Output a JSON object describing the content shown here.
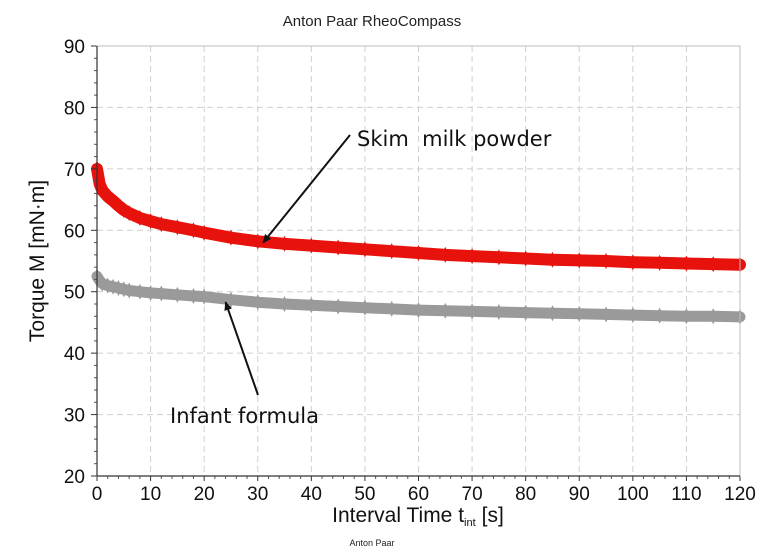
{
  "chart_data": {
    "type": "scatter",
    "title": "Anton Paar RheoCompass",
    "footer": "Anton Paar",
    "xlabel": "Interval Time t",
    "xlabel_sub": "int",
    "xlabel_unit": "[s]",
    "ylabel": "Torque M [mN·m]",
    "xlim": [
      0,
      120
    ],
    "ylim": [
      20,
      90
    ],
    "xticks": [
      "0",
      "10",
      "20",
      "30",
      "40",
      "50",
      "60",
      "70",
      "80",
      "90",
      "100",
      "110",
      "120"
    ],
    "yticks": [
      "20",
      "30",
      "40",
      "50",
      "60",
      "70",
      "80",
      "90"
    ],
    "grid": true,
    "series": [
      {
        "name": "Skim milk powder",
        "color": "#e8120c",
        "x": [
          0,
          0.5,
          1,
          2,
          3,
          4,
          5,
          6,
          8,
          10,
          12,
          15,
          18,
          20,
          25,
          30,
          35,
          40,
          45,
          50,
          55,
          60,
          65,
          70,
          75,
          80,
          85,
          90,
          95,
          100,
          105,
          110,
          115,
          120
        ],
        "y": [
          70,
          67.5,
          66.5,
          65.5,
          64.8,
          64,
          63.3,
          62.8,
          62,
          61.5,
          61,
          60.5,
          60,
          59.6,
          58.8,
          58.2,
          57.8,
          57.5,
          57.2,
          56.9,
          56.6,
          56.3,
          56,
          55.8,
          55.6,
          55.4,
          55.2,
          55.1,
          55,
          54.8,
          54.7,
          54.6,
          54.5,
          54.4
        ]
      },
      {
        "name": "Infant formula",
        "color": "#9a9a9a",
        "x": [
          0,
          0.5,
          1,
          2,
          3,
          4,
          5,
          6,
          8,
          10,
          12,
          15,
          18,
          20,
          25,
          30,
          35,
          40,
          45,
          50,
          55,
          60,
          65,
          70,
          75,
          80,
          85,
          90,
          95,
          100,
          105,
          110,
          115,
          120
        ],
        "y": [
          52.5,
          51.8,
          51.3,
          51,
          50.8,
          50.6,
          50.4,
          50.2,
          50,
          49.8,
          49.7,
          49.5,
          49.3,
          49.2,
          48.7,
          48.3,
          48,
          47.8,
          47.6,
          47.4,
          47.2,
          47,
          46.9,
          46.8,
          46.7,
          46.6,
          46.5,
          46.4,
          46.3,
          46.2,
          46.1,
          46,
          46,
          45.9
        ]
      }
    ],
    "annotations": [
      {
        "text": "Skim  milk powder",
        "arrow_to": [
          31,
          58
        ]
      },
      {
        "text": "Infant formula",
        "arrow_to": [
          24,
          48.3
        ]
      }
    ]
  }
}
